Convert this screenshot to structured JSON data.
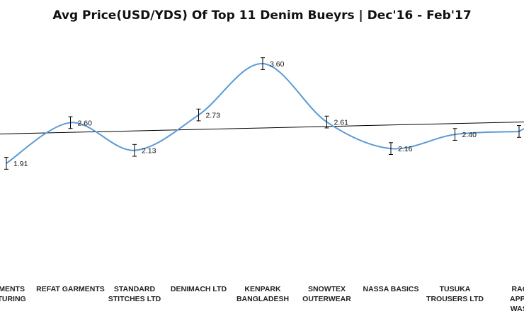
{
  "chart_data": {
    "type": "line",
    "title": "Avg Price(USD/YDS) Of Top 11 Denim Bueyrs | Dec'16 - Feb'17",
    "categories": [
      [
        "ARMENTS",
        "ACTURING"
      ],
      [
        "REFAT GARMENTS"
      ],
      [
        "STANDARD",
        "STITCHES LTD"
      ],
      [
        "DENIMACH LTD"
      ],
      [
        "KENPARK",
        "BANGLADESH"
      ],
      [
        "SNOWTEX",
        "OUTERWEAR"
      ],
      [
        "NASSA BASICS"
      ],
      [
        "TUSUKA",
        "TROUSERS LTD"
      ],
      [
        "RAQU",
        "APPAR",
        "WASHI"
      ]
    ],
    "values": [
      1.91,
      2.6,
      2.13,
      2.73,
      3.6,
      2.61,
      2.16,
      2.4,
      2.45
    ],
    "data_labels": [
      "1.91",
      "2.60",
      "2.13",
      "2.73",
      "3.60",
      "2.61",
      "2.16",
      "2.40",
      ""
    ],
    "error_bar": 0.1,
    "trendline": true,
    "series_color": "#5B9BD5",
    "trend_color": "#000000",
    "grid": false,
    "legend": "none",
    "xlabel": "",
    "ylabel": ""
  }
}
